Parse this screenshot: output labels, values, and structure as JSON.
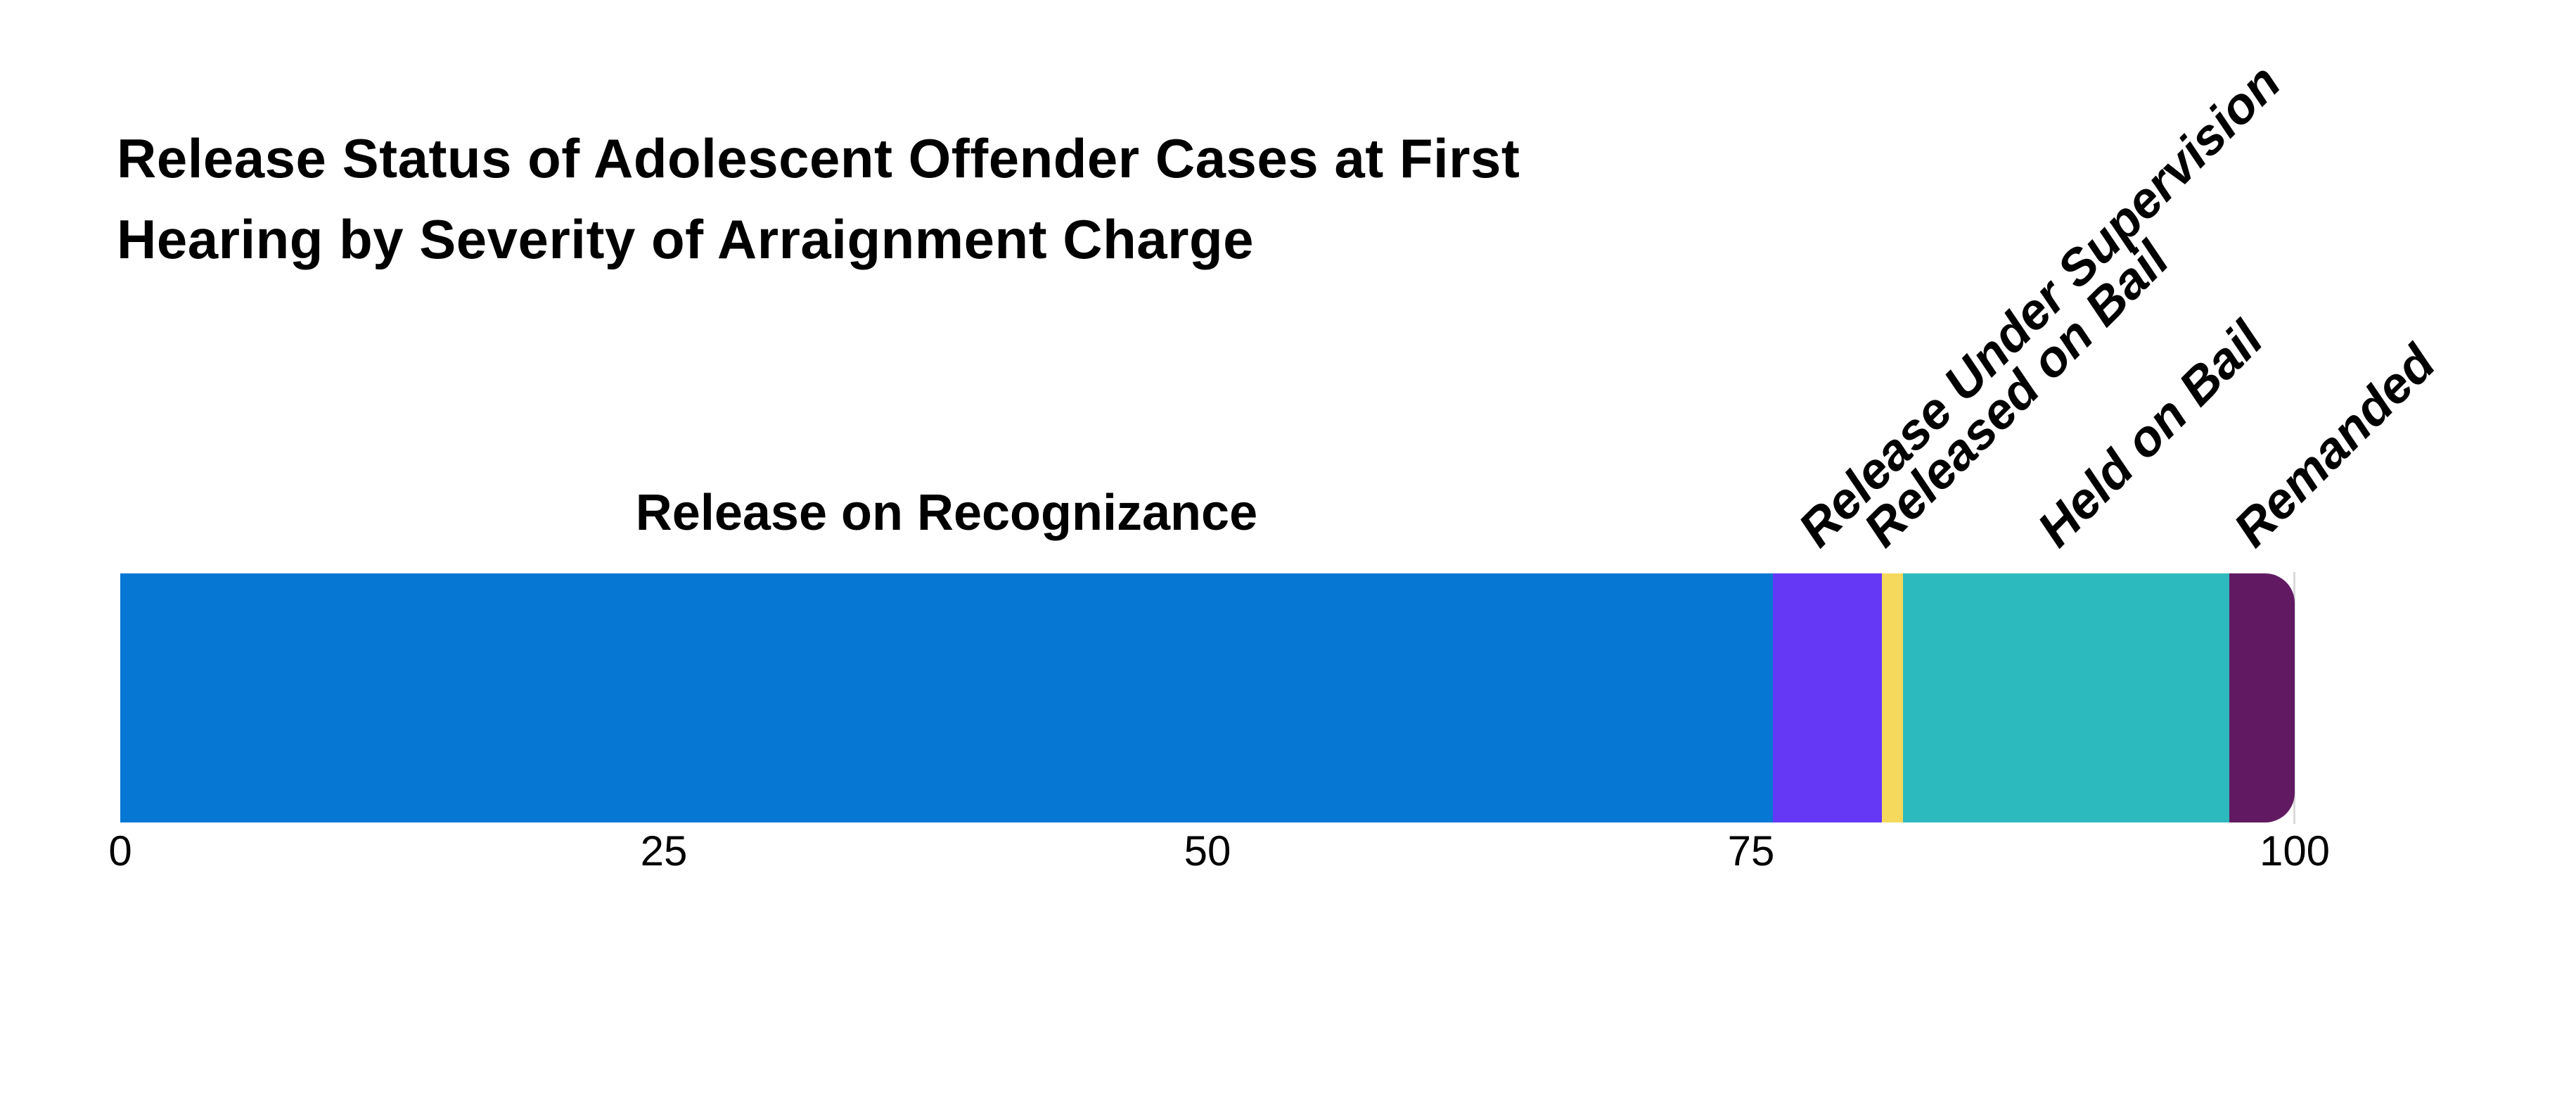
{
  "chart_data": {
    "type": "bar",
    "stacked": true,
    "orientation": "horizontal",
    "title": "Release Status of Adolescent Offender Cases at First Hearing by Severity of Arraignment Charge",
    "title_lines": [
      "Release Status of Adolescent Offender Cases at First",
      "Hearing by Severity of Arraignment Charge"
    ],
    "categories": [
      "Release on Recognizance",
      "Release Under Supervision",
      "Released on Bail",
      "Held on Bail",
      "Remanded"
    ],
    "values": [
      76,
      5,
      1,
      15,
      3
    ],
    "colors": [
      "#0777d4",
      "#6538f5",
      "#f5d95c",
      "#2dbabe",
      "#611a62"
    ],
    "segment_label_rotation_deg": [
      0,
      -45,
      -45,
      -45,
      -45
    ],
    "xlabel": "",
    "ylabel": "",
    "xlim": [
      0,
      100
    ],
    "x_ticks": [
      0,
      25,
      50,
      75,
      100
    ],
    "grid": false,
    "legend": "none",
    "text_color": "#000000",
    "axis_line_color": "#d9d9d9",
    "background_color": "#ffffff"
  }
}
